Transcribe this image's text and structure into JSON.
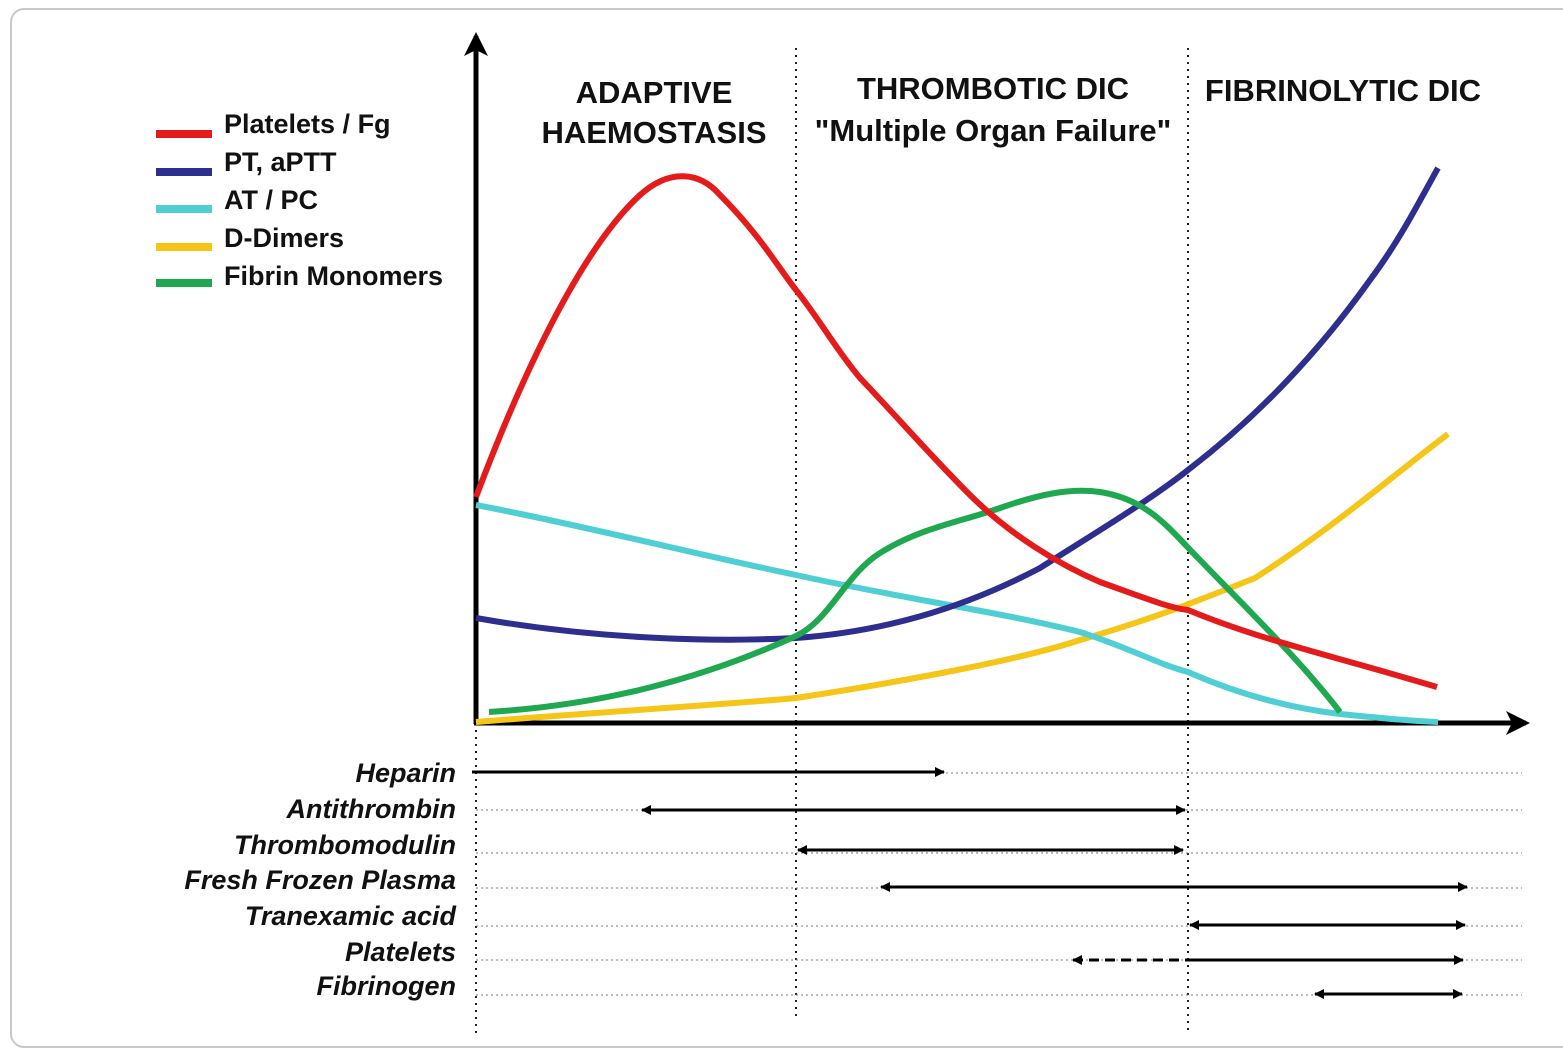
{
  "colors": {
    "platelets_fg": "#e41b1b",
    "pt_aptt": "#2e2e8f",
    "at_pc": "#4fcfd3",
    "d_dimers": "#f5c518",
    "fibrin_monomers": "#1fa84f"
  },
  "legend": [
    {
      "key": "platelets_fg",
      "label": "Platelets / Fg"
    },
    {
      "key": "pt_aptt",
      "label": "PT, aPTT"
    },
    {
      "key": "at_pc",
      "label": "AT / PC"
    },
    {
      "key": "d_dimers",
      "label": "D-Dimers"
    },
    {
      "key": "fibrin_monomers",
      "label": "Fibrin Monomers"
    }
  ],
  "phases": {
    "adaptive": {
      "line1": "ADAPTIVE",
      "line2": "HAEMOSTASIS"
    },
    "thrombotic": {
      "line1": "THROMBOTIC DIC",
      "line2": "\"Multiple Organ Failure\""
    },
    "fibrinolytic": {
      "line1": "FIBRINOLYTIC DIC"
    }
  },
  "therapies": [
    {
      "label": "Heparin",
      "range": "adaptive to mid thrombotic"
    },
    {
      "label": "Antithrombin",
      "range": "mid adaptive to end thrombotic"
    },
    {
      "label": "Thrombomodulin",
      "range": "thrombotic"
    },
    {
      "label": "Fresh Frozen Plasma",
      "range": "early thrombotic to fibrinolytic"
    },
    {
      "label": "Tranexamic acid",
      "range": "fibrinolytic"
    },
    {
      "label": "Platelets",
      "range": "late thrombotic (dashed) to fibrinolytic"
    },
    {
      "label": "Fibrinogen",
      "range": "late fibrinolytic"
    }
  ]
}
